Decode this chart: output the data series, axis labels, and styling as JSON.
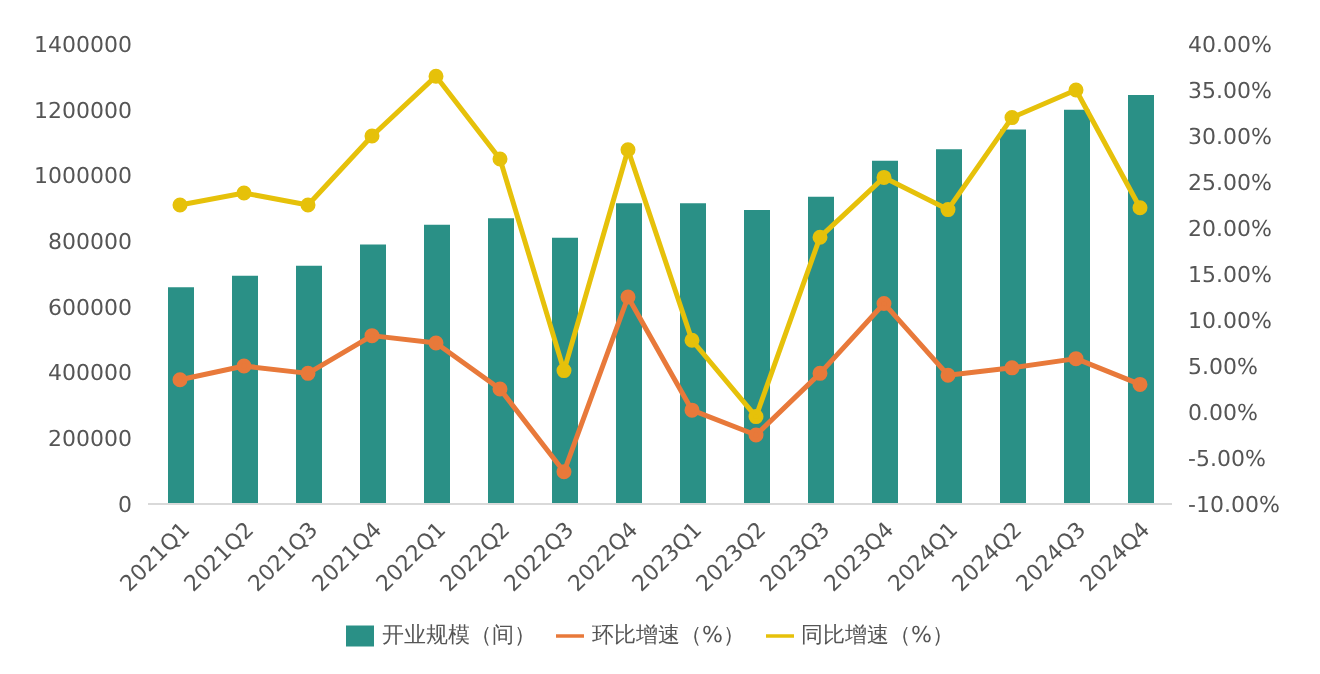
{
  "chart_data": {
    "type": "bar",
    "categories": [
      "2021Q1",
      "2021Q2",
      "2021Q3",
      "2021Q4",
      "2022Q1",
      "2022Q2",
      "2022Q3",
      "2022Q4",
      "2023Q1",
      "2023Q2",
      "2023Q3",
      "2023Q4",
      "2024Q1",
      "2024Q2",
      "2024Q3",
      "2024Q4"
    ],
    "series": [
      {
        "name": "开业规模（间）",
        "color": "#2a9086",
        "values": [
          660000,
          695000,
          725000,
          790000,
          850000,
          870000,
          810000,
          915000,
          915000,
          895000,
          935000,
          1045000,
          1080000,
          1140000,
          1200000,
          1245000
        ]
      },
      {
        "name": "环比增速（%）",
        "type": "line",
        "axis": "y2",
        "color": "#e8793a",
        "values": [
          3.5,
          5.0,
          4.2,
          8.3,
          7.5,
          2.5,
          -6.5,
          12.5,
          0.2,
          -2.5,
          4.2,
          11.8,
          4.0,
          4.8,
          5.8,
          3.0
        ]
      },
      {
        "name": "同比增速（%）",
        "type": "line",
        "axis": "y2",
        "color": "#e6c10a",
        "values": [
          22.5,
          23.8,
          22.5,
          30.0,
          36.5,
          27.5,
          4.5,
          28.5,
          7.8,
          -0.5,
          19.0,
          25.5,
          22.0,
          32.0,
          35.0,
          22.2
        ]
      }
    ],
    "ylim": [
      0,
      1400000
    ],
    "yticks": [
      0,
      200000,
      400000,
      600000,
      800000,
      1000000,
      1200000,
      1400000
    ],
    "y2lim": [
      -10,
      40
    ],
    "y2ticks": [
      {
        "value": -10,
        "label": "-10.00%"
      },
      {
        "value": -5,
        "label": "-5.00%"
      },
      {
        "value": 0,
        "label": "0.00%"
      },
      {
        "value": 5,
        "label": "5.00%"
      },
      {
        "value": 10,
        "label": "10.00%"
      },
      {
        "value": 15,
        "label": "15.00%"
      },
      {
        "value": 20,
        "label": "20.00%"
      },
      {
        "value": 25,
        "label": "25.00%"
      },
      {
        "value": 30,
        "label": "30.00%"
      },
      {
        "value": 35,
        "label": "35.00%"
      },
      {
        "value": 40,
        "label": "40.00%"
      }
    ],
    "grid": false,
    "legend": "bottom",
    "marker": "circle",
    "line_style": "solid"
  }
}
